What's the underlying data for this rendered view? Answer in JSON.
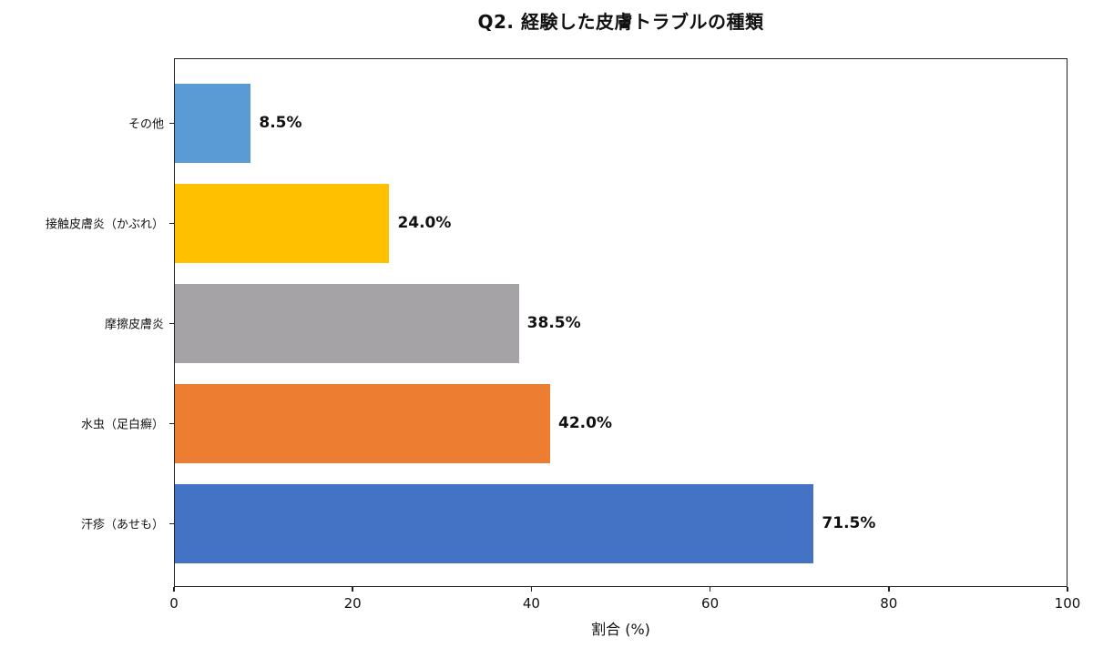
{
  "chart_data": {
    "type": "bar",
    "orientation": "horizontal",
    "title": "Q2. 経験した皮膚トラブルの種類",
    "xlabel": "割合 (%)",
    "ylabel": "",
    "xlim": [
      0,
      100
    ],
    "xticks": [
      "0",
      "20",
      "40",
      "60",
      "80",
      "100"
    ],
    "grid": false,
    "legend": null,
    "categories": [
      "その他",
      "接触皮膚炎（かぶれ）",
      "摩擦皮膚炎",
      "水虫（足白癬）",
      "汗疹（あせも）"
    ],
    "values": [
      8.5,
      24.0,
      38.5,
      42.0,
      71.5
    ],
    "value_labels": [
      "8.5%",
      "24.0%",
      "38.5%",
      "42.0%",
      "71.5%"
    ],
    "colors": [
      "#5B9BD5",
      "#FFC000",
      "#A5A3A6",
      "#ED7D31",
      "#4472C4"
    ]
  }
}
